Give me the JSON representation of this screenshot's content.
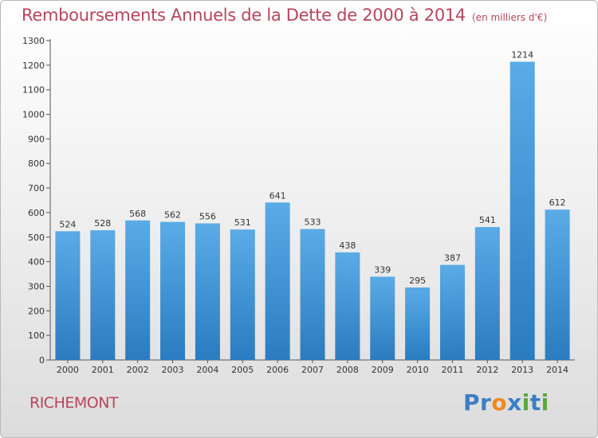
{
  "header": {
    "title": "Remboursements Annuels de la Dette de 2000 à 2014",
    "subtitle": "(en milliers d'€)"
  },
  "footer": {
    "location": "RICHEMONT",
    "logo_letters": [
      "P",
      "r",
      "o",
      "x",
      "i",
      "t",
      "i"
    ]
  },
  "colors": {
    "title": "#b7455b",
    "bar_top": "#5aabe6",
    "bar_bottom": "#2a7cc0",
    "logo": [
      "#3b7fc4",
      "#3b7fc4",
      "#ef8a1f",
      "#3b7fc4",
      "#59a83b",
      "#3b7fc4",
      "#59a83b"
    ]
  },
  "chart_data": {
    "type": "bar",
    "categories": [
      "2000",
      "2001",
      "2002",
      "2003",
      "2004",
      "2005",
      "2006",
      "2007",
      "2008",
      "2009",
      "2010",
      "2011",
      "2012",
      "2013",
      "2014"
    ],
    "values": [
      524,
      528,
      568,
      562,
      556,
      531,
      641,
      533,
      438,
      339,
      295,
      387,
      541,
      1214,
      612
    ],
    "value_labels": [
      "524",
      "528",
      "568",
      "562",
      "556",
      "531",
      "641",
      "533",
      "438",
      "339",
      "295",
      "387",
      "541",
      "1214",
      "612"
    ],
    "y_ticks": [
      "0",
      "100",
      "200",
      "300",
      "400",
      "500",
      "600",
      "700",
      "800",
      "900",
      "1000",
      "1100",
      "1200",
      "1300"
    ],
    "ylim": [
      0,
      1300
    ],
    "grid": false,
    "legend": "none"
  }
}
